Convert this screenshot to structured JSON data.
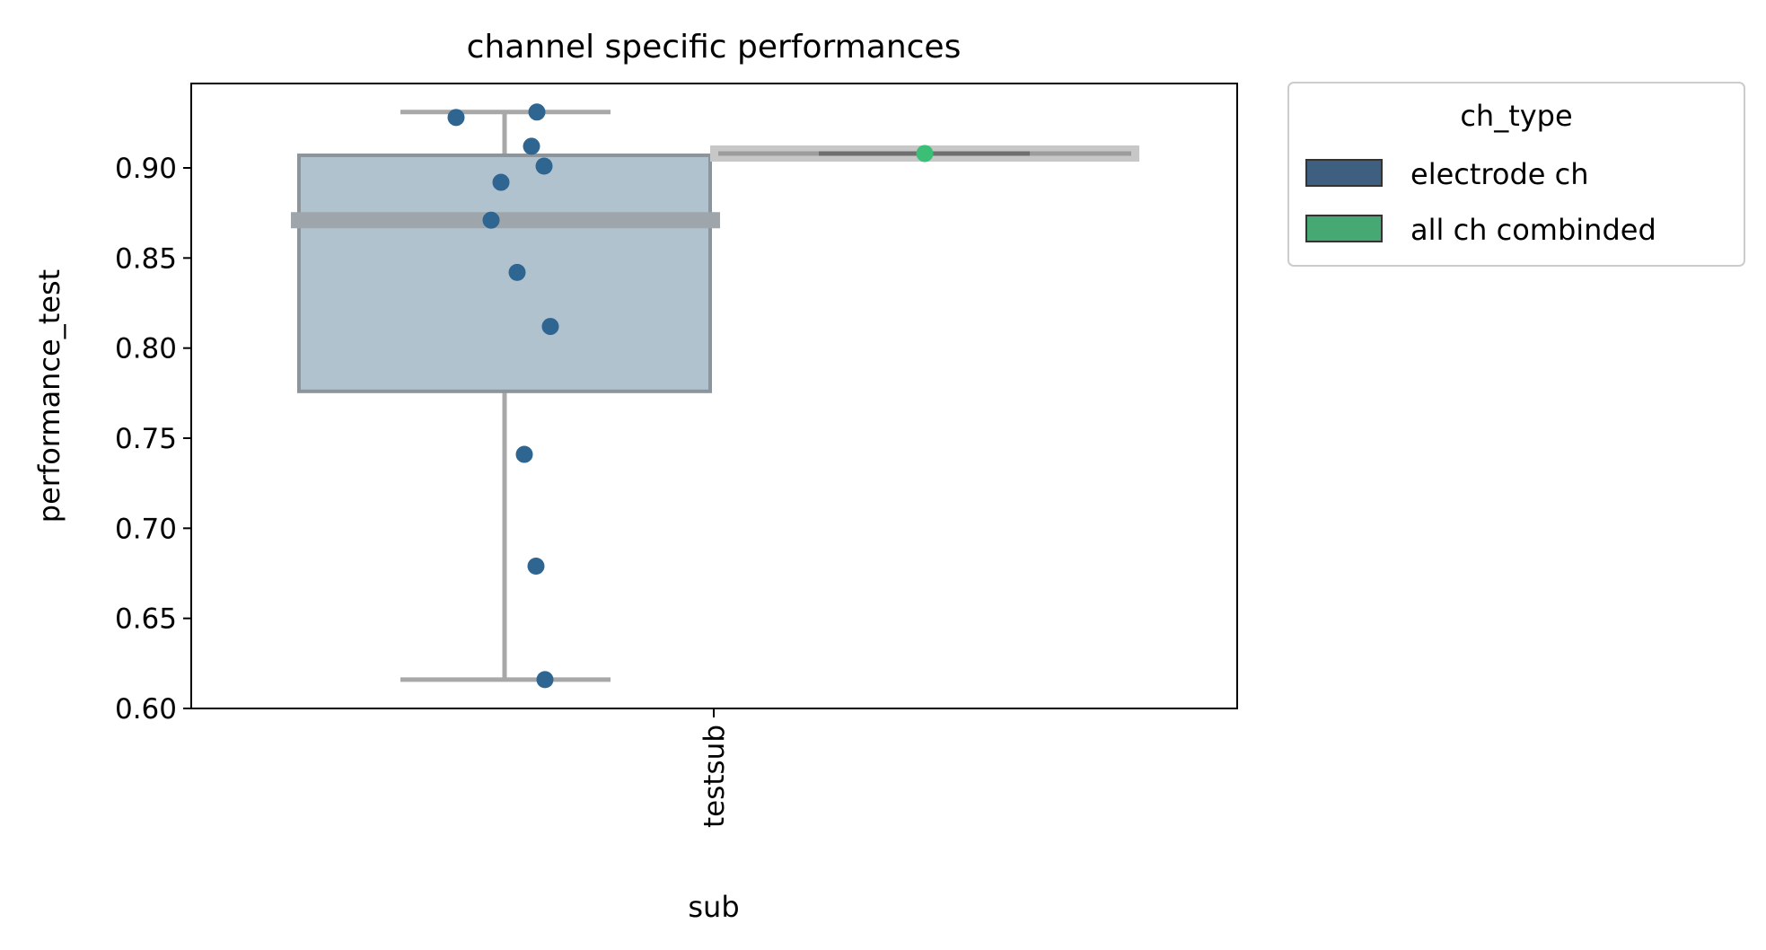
{
  "chart_data": {
    "type": "box",
    "title": "channel specific performances",
    "xlabel": "sub",
    "ylabel": "performance_test",
    "categories": [
      "testsub"
    ],
    "ylim": [
      0.6,
      0.945
    ],
    "yticks": [
      0.6,
      0.65,
      0.7,
      0.75,
      0.8,
      0.85,
      0.9
    ],
    "grid": false,
    "legend": {
      "title": "ch_type",
      "placement": "outside-top-right",
      "entries": [
        {
          "label": "electrode ch",
          "color": "#3e5f7f"
        },
        {
          "label": "all ch combinded",
          "color": "#46a873"
        }
      ]
    },
    "series": [
      {
        "name": "electrode ch",
        "color": "#2e6591",
        "box_fill": "#b1c2cf",
        "box": {
          "q1": 0.776,
          "median": 0.871,
          "q3": 0.907,
          "whisker_low": 0.616,
          "whisker_high": 0.931
        },
        "points": [
          0.928,
          0.931,
          0.912,
          0.901,
          0.892,
          0.871,
          0.842,
          0.812,
          0.741,
          0.679,
          0.616
        ]
      },
      {
        "name": "all ch combinded",
        "color": "#3bbf77",
        "box": {
          "q1": 0.908,
          "median": 0.908,
          "q3": 0.908,
          "whisker_low": 0.908,
          "whisker_high": 0.908
        },
        "points": [
          0.908
        ]
      }
    ]
  }
}
